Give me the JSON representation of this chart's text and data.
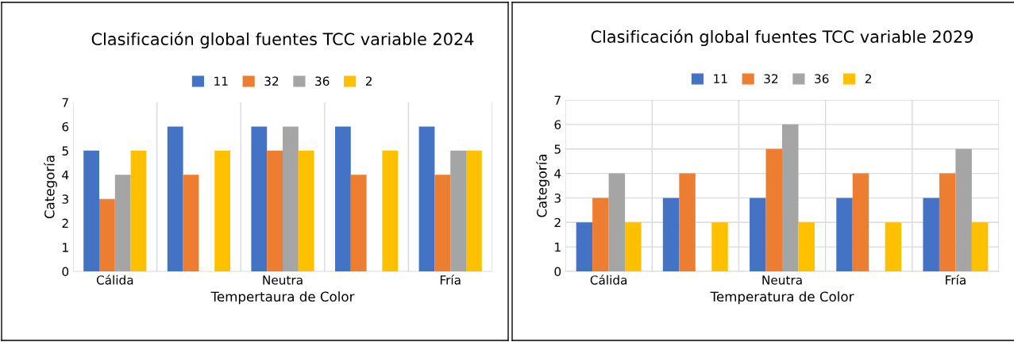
{
  "chart_data": [
    {
      "type": "bar",
      "title": "Clasificación global fuentes TCC variable 2024",
      "xlabel": "Tempertaura de Color",
      "ylabel": "Categoría",
      "categories": [
        "Cálida",
        null,
        "Neutra",
        null,
        "Fría"
      ],
      "ylim": [
        0,
        7
      ],
      "yticks": [
        0,
        1,
        2,
        3,
        4,
        5,
        6,
        7
      ],
      "grid": "x",
      "legend": "top",
      "series": [
        {
          "name": "11",
          "color": "#4472c4",
          "values": [
            5,
            6,
            6,
            6,
            6
          ]
        },
        {
          "name": "32",
          "color": "#ed7d31",
          "values": [
            3,
            4,
            5,
            4,
            4
          ]
        },
        {
          "name": "36",
          "color": "#a5a5a5",
          "values": [
            4,
            null,
            6,
            null,
            5
          ]
        },
        {
          "name": "2",
          "color": "#ffc000",
          "values": [
            5,
            5,
            5,
            5,
            5
          ]
        }
      ]
    },
    {
      "type": "bar",
      "title": "Clasificación global fuentes TCC variable 2029",
      "xlabel": "Temperatura de Color",
      "ylabel": "Categoría",
      "categories": [
        "Cálida",
        null,
        "Neutra",
        null,
        "Fría"
      ],
      "ylim": [
        0,
        7
      ],
      "yticks": [
        0,
        1,
        2,
        3,
        4,
        5,
        6,
        7
      ],
      "grid": true,
      "legend": "top",
      "series": [
        {
          "name": "11",
          "color": "#4472c4",
          "values": [
            2,
            3,
            3,
            3,
            3
          ]
        },
        {
          "name": "32",
          "color": "#ed7d31",
          "values": [
            3,
            4,
            5,
            4,
            4
          ]
        },
        {
          "name": "36",
          "color": "#a5a5a5",
          "values": [
            4,
            null,
            6,
            null,
            5
          ]
        },
        {
          "name": "2",
          "color": "#ffc000",
          "values": [
            2,
            2,
            2,
            2,
            2
          ]
        }
      ]
    }
  ]
}
